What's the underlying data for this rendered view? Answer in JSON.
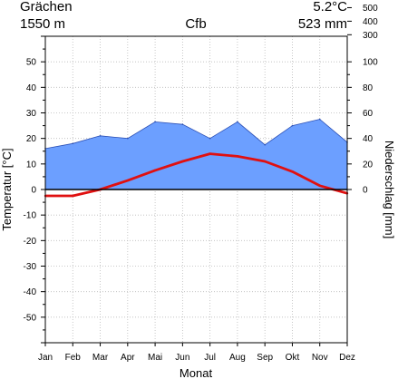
{
  "header": {
    "station": "Grächen",
    "mean_temp": "5.2°C",
    "elevation": "1550 m",
    "climate_class": "Cfb",
    "annual_precip": "523 mm"
  },
  "chart_data": {
    "type": "area",
    "categories": [
      "Jan",
      "Feb",
      "Mar",
      "Apr",
      "Mai",
      "Jun",
      "Jul",
      "Aug",
      "Sep",
      "Okt",
      "Nov",
      "Dez"
    ],
    "xlabel": "Monat",
    "ylabel": "Temperatur [°C]",
    "y2label": "Niederschlag [mm]",
    "ylim": [
      -60,
      60
    ],
    "y2lim_ticks": [
      0,
      20,
      40,
      60,
      80,
      100,
      300,
      400,
      500,
      600,
      700,
      900
    ],
    "y_ticks": [
      -50,
      -40,
      -30,
      -20,
      -10,
      0,
      10,
      20,
      30,
      40,
      50
    ],
    "grid": true,
    "series": [
      {
        "name": "Niederschlag",
        "axis": "right",
        "color": "#6c9fff",
        "values": [
          32,
          36,
          42,
          40,
          53,
          51,
          40,
          53,
          35,
          50,
          55,
          37
        ]
      },
      {
        "name": "Temperatur",
        "axis": "left",
        "color": "#e01010",
        "values": [
          -2.5,
          -2.5,
          0,
          3.5,
          7.5,
          11,
          14,
          13,
          11,
          7,
          1.5,
          -1.5
        ]
      }
    ]
  }
}
